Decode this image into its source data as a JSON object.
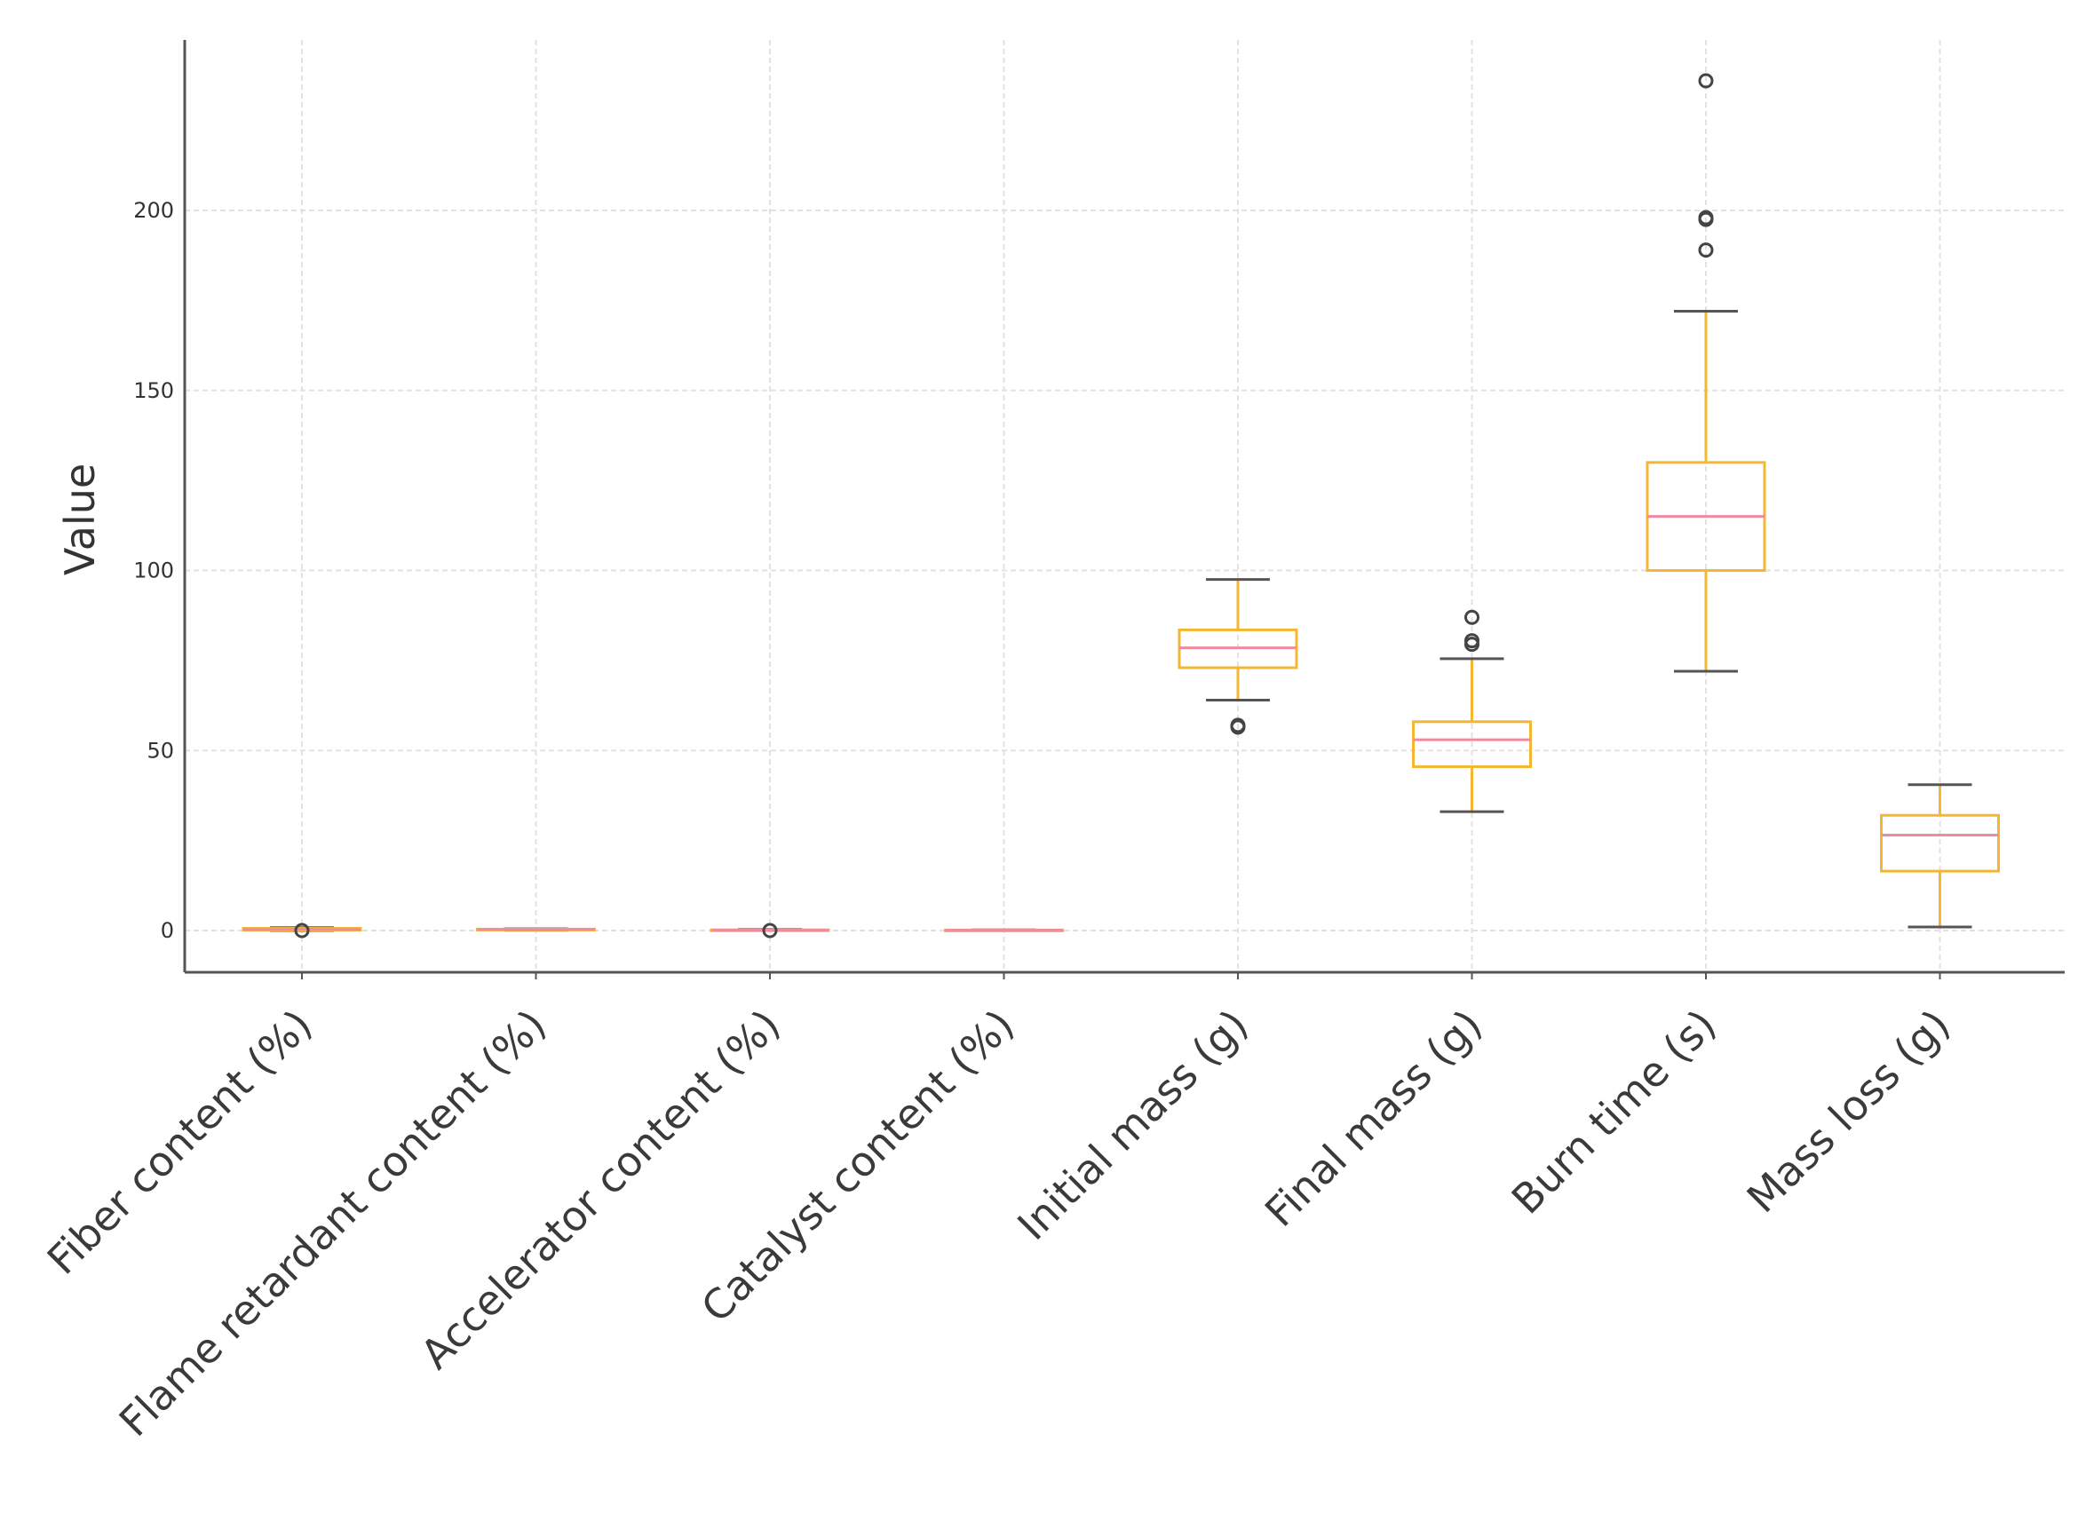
{
  "chart_data": {
    "type": "boxplot",
    "title": "",
    "xlabel": "",
    "ylabel": "Value",
    "ylim": [
      -12,
      248
    ],
    "yticks": [
      0,
      50,
      100,
      150,
      200
    ],
    "grid": true,
    "colors": {
      "box": "#f5b731",
      "median": "#f08aa0",
      "cap": "#555555",
      "outlier": "#444444",
      "grid": "#e2e2e2",
      "axis": "#555555"
    },
    "categories": [
      "Fiber content (%)",
      "Flame retardant content (%)",
      "Accelerator content (%)",
      "Catalyst content (%)",
      "Initial mass (g)",
      "Final mass (g)",
      "Burn time (s)",
      "Mass loss (g)"
    ],
    "boxes": [
      {
        "whislo": 0,
        "q1": 0.1,
        "med": 0.3,
        "q3": 0.6,
        "whishi": 0.8,
        "fliers": [
          0
        ]
      },
      {
        "whislo": 0.1,
        "q1": 0.2,
        "med": 0.3,
        "q3": 0.4,
        "whishi": 0.5,
        "fliers": []
      },
      {
        "whislo": 0,
        "q1": 0.05,
        "med": 0.1,
        "q3": 0.2,
        "whishi": 0.3,
        "fliers": [
          0
        ]
      },
      {
        "whislo": 0,
        "q1": 0.05,
        "med": 0.1,
        "q3": 0.15,
        "whishi": 0.2,
        "fliers": []
      },
      {
        "whislo": 64,
        "q1": 73,
        "med": 78.5,
        "q3": 83.5,
        "whishi": 97.5,
        "fliers": [
          56.5,
          57
        ]
      },
      {
        "whislo": 33,
        "q1": 45.5,
        "med": 53,
        "q3": 58,
        "whishi": 75.5,
        "fliers": [
          79.5,
          80.5,
          87
        ]
      },
      {
        "whislo": 72,
        "q1": 100,
        "med": 115,
        "q3": 130,
        "whishi": 172,
        "fliers": [
          189,
          197.5,
          198,
          236
        ]
      },
      {
        "whislo": 1,
        "q1": 16.5,
        "med": 26.5,
        "q3": 32,
        "whishi": 40.5,
        "fliers": []
      }
    ]
  }
}
